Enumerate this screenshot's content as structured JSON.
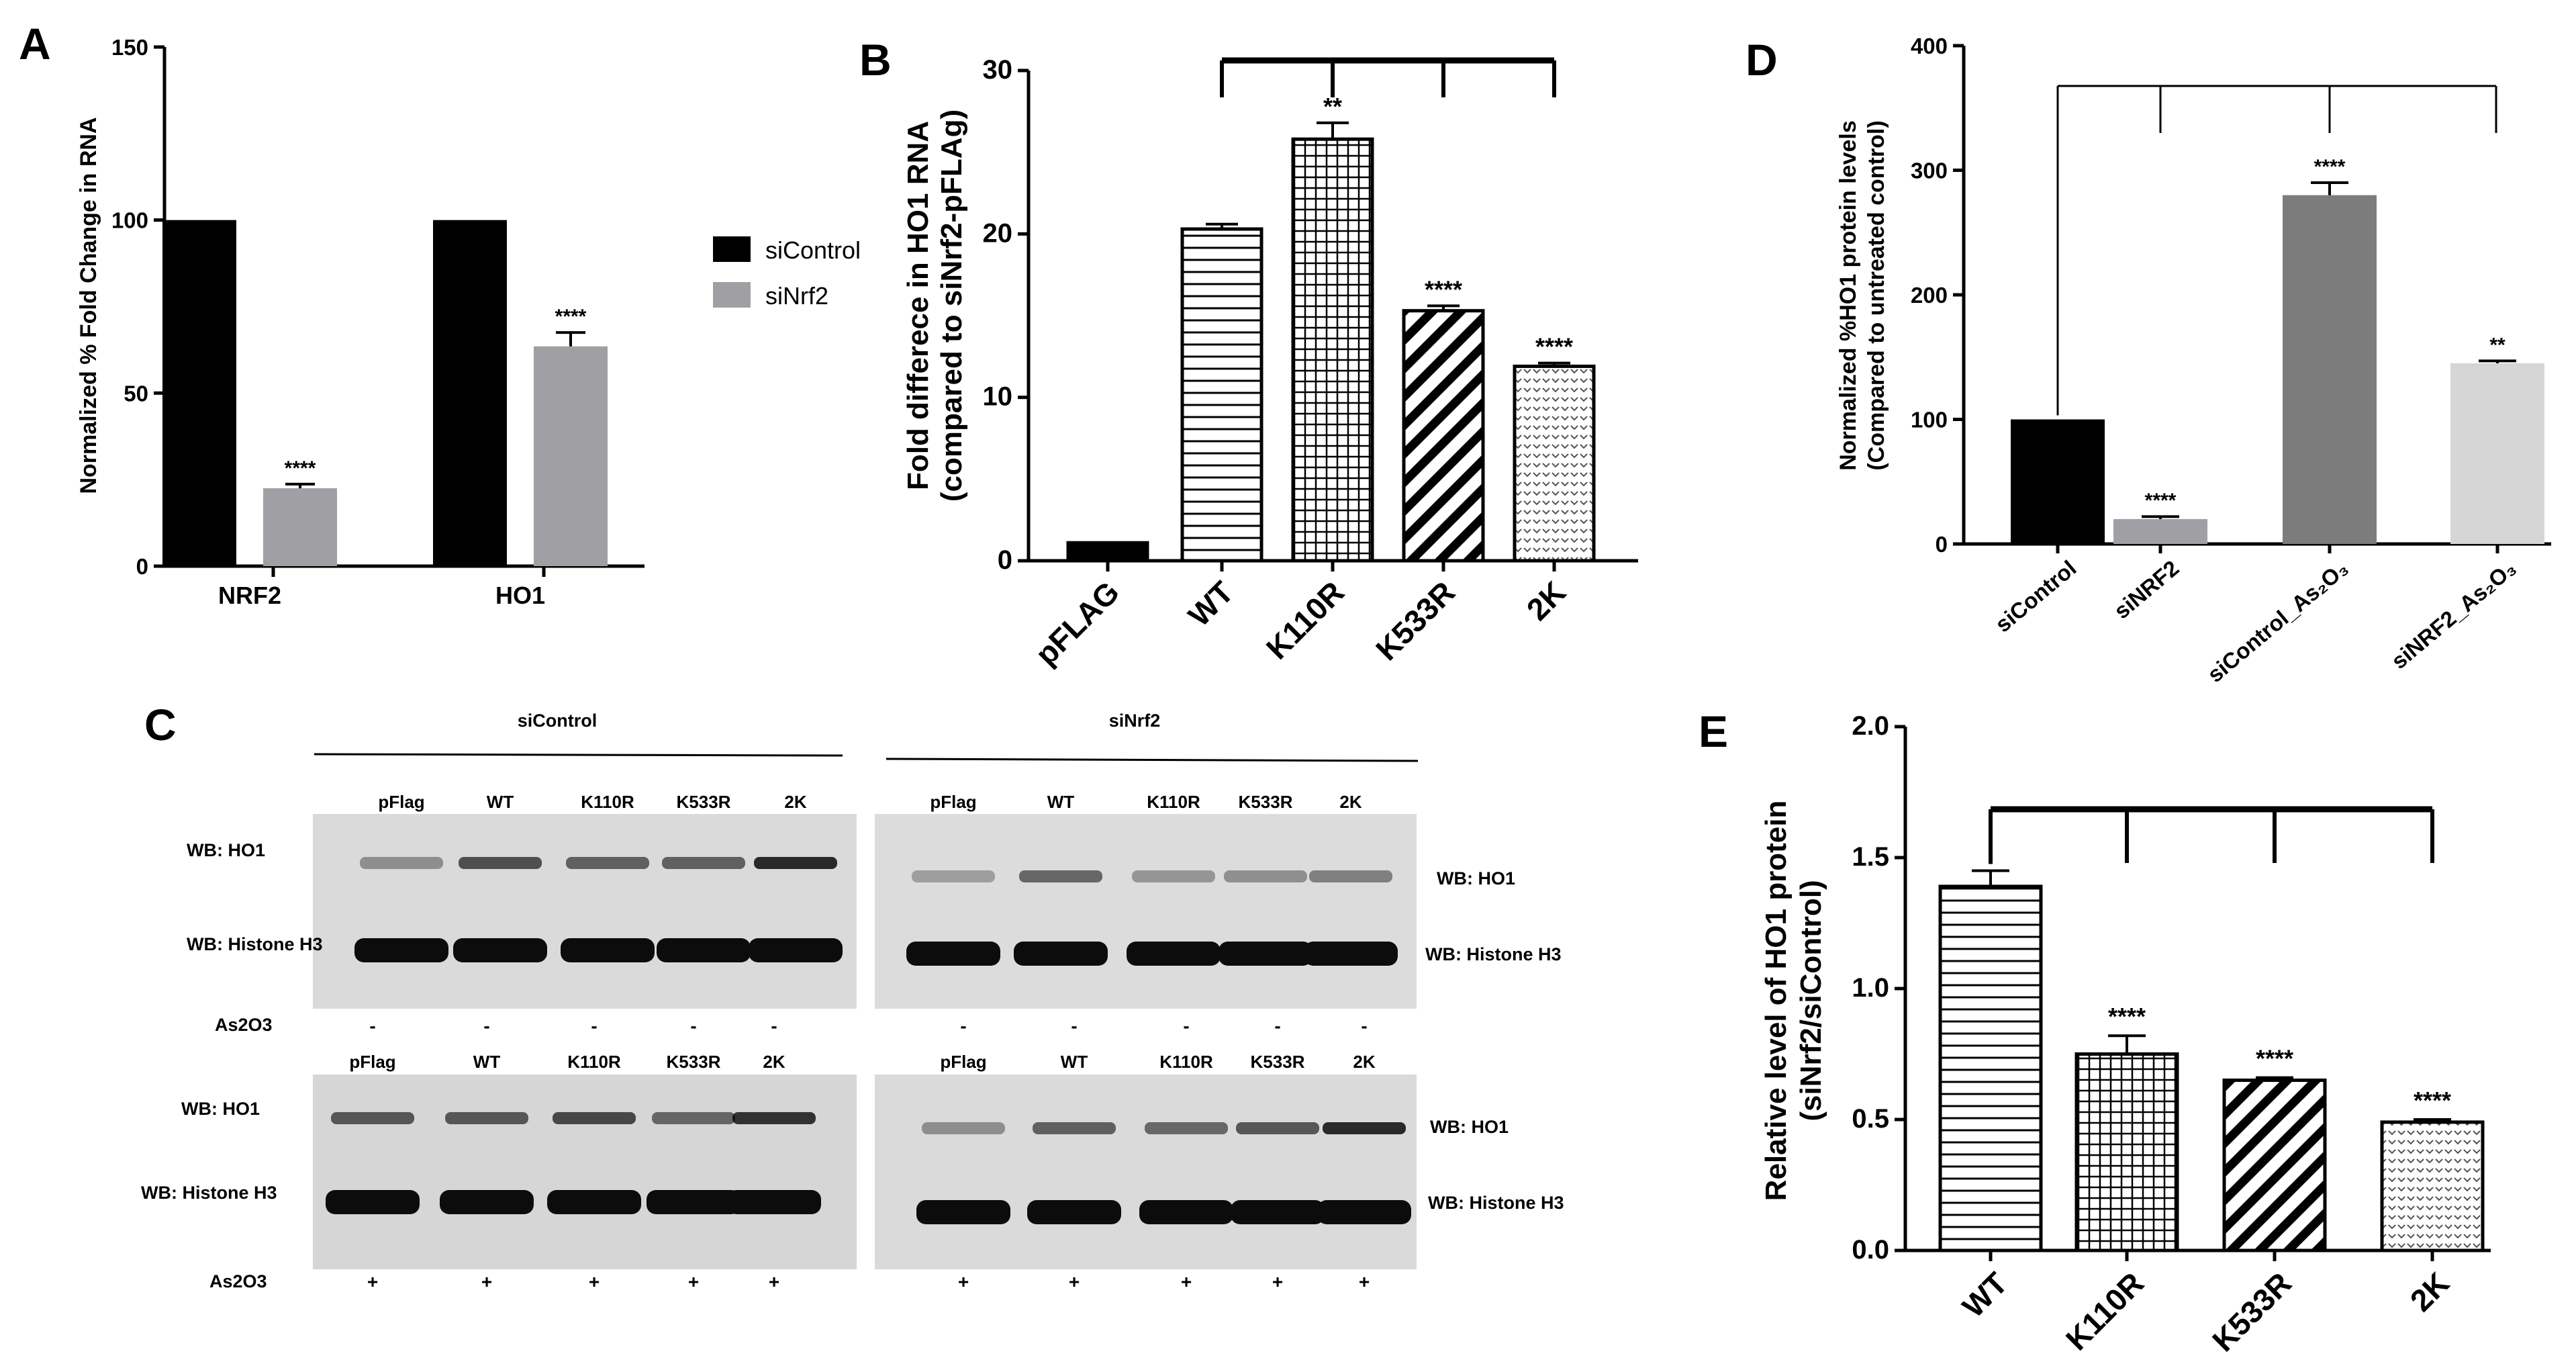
{
  "colors": {
    "black": "#000000",
    "grey": "#a0a0a4",
    "dark_grey": "#7c7c7c",
    "light_grey": "#d6d6d6",
    "blot_bg": "#d9d9d9",
    "band": "#0c0c0c"
  },
  "chart_data": [
    {
      "panel": "A",
      "type": "bar",
      "categories": [
        "NRF2",
        "HO1"
      ],
      "series": [
        {
          "name": "siControl",
          "values": [
            100,
            100
          ],
          "errors": [
            0,
            0
          ],
          "significance": [
            "",
            ""
          ],
          "color": "#000000"
        },
        {
          "name": "siNrf2",
          "values": [
            22.5,
            63.5
          ],
          "errors": [
            1.2,
            4
          ],
          "significance": [
            "****",
            "****"
          ],
          "color": "#a0a0a4"
        }
      ],
      "ylabel": "Normalized %  Fold Change in RNA",
      "ylim": [
        0,
        150
      ],
      "yticks": [
        0,
        50,
        100,
        150
      ],
      "legend": "right",
      "grid": false
    },
    {
      "panel": "B",
      "type": "bar",
      "categories": [
        "pFLAG",
        "WT",
        "K110R",
        "K533R",
        "2K"
      ],
      "values": [
        1.1,
        20.3,
        25.8,
        15.3,
        11.9
      ],
      "errors": [
        0,
        0.3,
        1,
        0.3,
        0.2
      ],
      "significance": [
        "",
        "",
        "**",
        "****",
        "****"
      ],
      "patterns": [
        "solid",
        "hlines",
        "grid",
        "diag",
        "dots"
      ],
      "ylabel_line1": "Fold differece in HO1 RNA",
      "ylabel_line2": "(compared to siNrf2-pFLAg)",
      "ylim": [
        0,
        30
      ],
      "yticks": [
        0,
        10,
        20,
        30
      ],
      "comparison_bracket": true,
      "grid": false
    },
    {
      "panel": "D",
      "type": "bar",
      "categories": [
        "siControl",
        "siNRF2",
        "siControl_As₂O₃",
        "siNRF2_As₂O₃"
      ],
      "values": [
        100,
        20,
        280,
        145
      ],
      "errors": [
        0,
        2,
        10,
        2
      ],
      "significance": [
        "",
        "****",
        "****",
        "**"
      ],
      "colors": [
        "#000000",
        "#a0a0a4",
        "#7c7c7c",
        "#d6d6d6"
      ],
      "ylabel_line1": "Normalized %HO1 protein levels",
      "ylabel_line2": "(Compared to untreated control)",
      "ylim": [
        0,
        400
      ],
      "yticks": [
        0,
        100,
        200,
        300,
        400
      ],
      "comparison_bracket": true,
      "grid": false
    },
    {
      "panel": "E",
      "type": "bar",
      "categories": [
        "WT",
        "K110R",
        "K533R",
        "2K"
      ],
      "values": [
        1.39,
        0.75,
        0.65,
        0.49
      ],
      "errors": [
        0.06,
        0.07,
        0.01,
        0.01
      ],
      "significance": [
        "",
        "****",
        "****",
        "****"
      ],
      "patterns": [
        "hlines",
        "grid",
        "diag",
        "dots"
      ],
      "ylabel_line1": "Relative level of HO1 protein",
      "ylabel_line2": "(siNrf2/siControl)",
      "ylim": [
        0,
        2.0
      ],
      "yticks": [
        "0.0",
        "0.5",
        "1.0",
        "1.5",
        "2.0"
      ],
      "comparison_bracket": true,
      "grid": false
    }
  ],
  "blots": {
    "panel": "C",
    "group_left": "siControl",
    "group_right": "siNrf2",
    "lanes": [
      "pFlag",
      "WT",
      "K110R",
      "K533R",
      "2K"
    ],
    "row_labels": {
      "ho1": "WB: HO1",
      "h3": "WB: Histone H3",
      "treatment": "As2O3"
    },
    "signs_top": [
      "-",
      "-",
      "-",
      "-",
      "-",
      "-",
      "-",
      "-",
      "-",
      "-"
    ],
    "signs_bottom": [
      "+",
      "+",
      "+",
      "+",
      "+",
      "+",
      "+",
      "+",
      "+",
      "+"
    ]
  }
}
